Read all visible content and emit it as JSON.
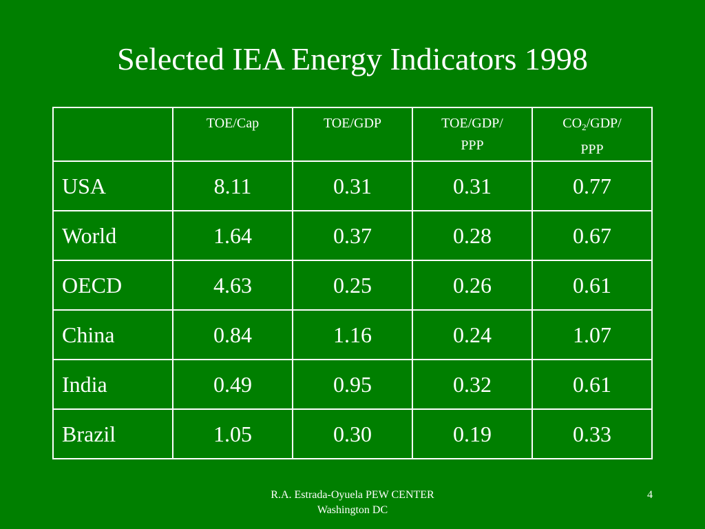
{
  "slide": {
    "title": "Selected IEA Energy Indicators 1998",
    "page_number": "4",
    "footer_line1": "R.A. Estrada-Oyuela PEW CENTER",
    "footer_line2": "Washington DC"
  },
  "colors": {
    "background": "#007f00",
    "text": "#ffffff",
    "grid": "#ffffff"
  },
  "table": {
    "headers": {
      "col1": "TOE/Cap",
      "col2": "TOE/GDP",
      "col3_line1": "TOE/GDP/",
      "col3_line2": "PPP",
      "col4_pre": "CO",
      "col4_sub": "2",
      "col4_post": "/GDP/",
      "col4_line2": "PPP"
    },
    "rows": [
      {
        "label": "USA",
        "values": [
          "8.11",
          "0.31",
          "0.31",
          "0.77"
        ]
      },
      {
        "label": "World",
        "values": [
          "1.64",
          "0.37",
          "0.28",
          "0.67"
        ]
      },
      {
        "label": "OECD",
        "values": [
          "4.63",
          "0.25",
          "0.26",
          "0.61"
        ]
      },
      {
        "label": "China",
        "values": [
          "0.84",
          "1.16",
          "0.24",
          "1.07"
        ]
      },
      {
        "label": "India",
        "values": [
          "0.49",
          "0.95",
          "0.32",
          "0.61"
        ]
      },
      {
        "label": "Brazil",
        "values": [
          "1.05",
          "0.30",
          "0.19",
          "0.33"
        ]
      }
    ]
  }
}
